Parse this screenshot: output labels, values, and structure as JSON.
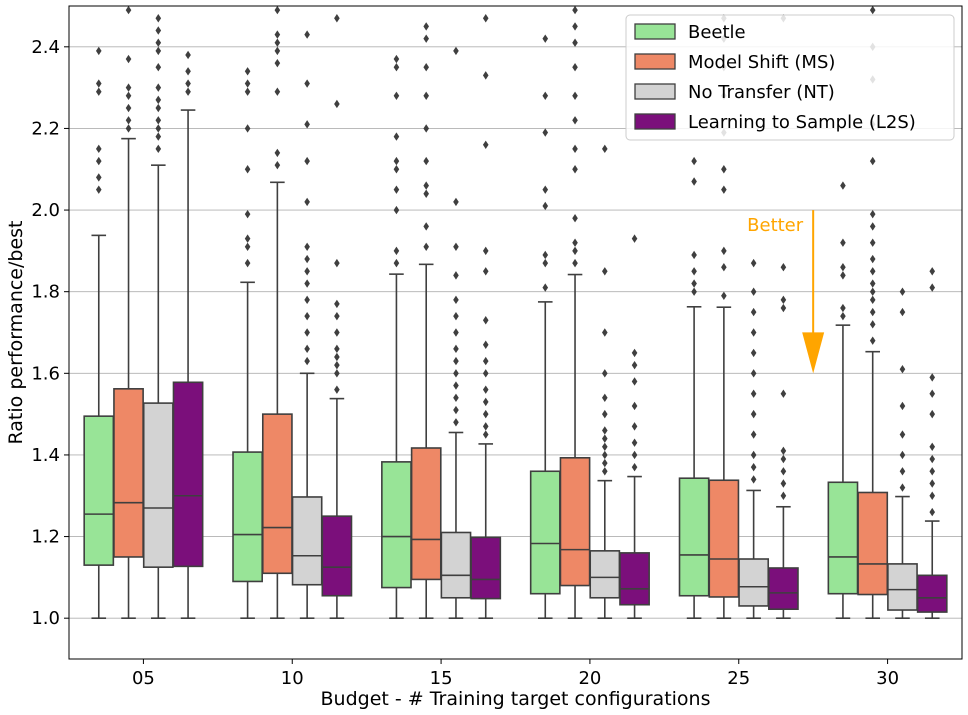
{
  "chart_data": {
    "type": "box",
    "xlabel": "Budget - # Training target configurations",
    "ylabel": "Ratio performance/best",
    "ylim": [
      0.9,
      2.5
    ],
    "yticks": [
      1.0,
      1.2,
      1.4,
      1.6,
      1.8,
      2.0,
      2.2,
      2.4
    ],
    "ytick_labels": [
      "1.0",
      "1.2",
      "1.4",
      "1.6",
      "1.8",
      "2.0",
      "2.2",
      "2.4"
    ],
    "categories": [
      "05",
      "10",
      "15",
      "20",
      "25",
      "30"
    ],
    "grid": "horizontal",
    "legend_position": "top-right",
    "annotation": {
      "text": "Better",
      "arrow_x": 27.5,
      "arrow_from_y": 2.0,
      "arrow_to_y": 1.6,
      "color": "#ffa500"
    },
    "series": [
      {
        "name": "Beetle",
        "color": "#98e497",
        "boxes": [
          {
            "whislo": 1.0,
            "q1": 1.13,
            "med": 1.255,
            "q3": 1.495,
            "whishi": 1.938,
            "fliers": [
              2.05,
              2.08,
              2.12,
              2.15,
              2.29,
              2.31,
              2.39
            ]
          },
          {
            "whislo": 1.0,
            "q1": 1.09,
            "med": 1.205,
            "q3": 1.407,
            "whishi": 1.823,
            "fliers": [
              1.87,
              1.91,
              1.93,
              1.99,
              2.1,
              2.2,
              2.29,
              2.31,
              2.34
            ]
          },
          {
            "whislo": 1.0,
            "q1": 1.075,
            "med": 1.2,
            "q3": 1.383,
            "whishi": 1.843,
            "fliers": [
              1.87,
              1.9,
              2.0,
              2.05,
              2.1,
              2.12,
              2.18,
              2.28,
              2.35,
              2.37
            ]
          },
          {
            "whislo": 1.0,
            "q1": 1.06,
            "med": 1.183,
            "q3": 1.36,
            "whishi": 1.775,
            "fliers": [
              1.81,
              1.87,
              1.89,
              2.01,
              2.05,
              2.19,
              2.28,
              2.42
            ]
          },
          {
            "whislo": 1.0,
            "q1": 1.055,
            "med": 1.155,
            "q3": 1.343,
            "whishi": 1.763,
            "fliers": [
              1.8,
              1.82,
              1.85,
              1.89,
              2.07,
              2.12
            ]
          },
          {
            "whislo": 1.0,
            "q1": 1.06,
            "med": 1.15,
            "q3": 1.333,
            "whishi": 1.718,
            "fliers": [
              1.74,
              1.76,
              1.84,
              1.86,
              1.92,
              2.06
            ]
          }
        ]
      },
      {
        "name": "Model Shift (MS)",
        "color": "#ee8866",
        "boxes": [
          {
            "whislo": 1.0,
            "q1": 1.15,
            "med": 1.283,
            "q3": 1.562,
            "whishi": 2.175,
            "fliers": [
              2.2,
              2.22,
              2.25,
              2.28,
              2.3,
              2.37,
              2.49
            ]
          },
          {
            "whislo": 1.0,
            "q1": 1.11,
            "med": 1.222,
            "q3": 1.5,
            "whishi": 2.068,
            "fliers": [
              2.11,
              2.14,
              2.29,
              2.36,
              2.39,
              2.41,
              2.43,
              2.49
            ]
          },
          {
            "whislo": 1.0,
            "q1": 1.095,
            "med": 1.193,
            "q3": 1.417,
            "whishi": 1.867,
            "fliers": [
              1.91,
              1.96,
              2.04,
              2.06,
              2.12,
              2.2,
              2.28,
              2.35,
              2.42,
              2.45
            ]
          },
          {
            "whislo": 1.0,
            "q1": 1.08,
            "med": 1.168,
            "q3": 1.393,
            "whishi": 1.842,
            "fliers": [
              1.87,
              1.9,
              1.92,
              1.98,
              2.1,
              2.15,
              2.22,
              2.28,
              2.35,
              2.41,
              2.45,
              2.49
            ]
          },
          {
            "whislo": 1.0,
            "q1": 1.052,
            "med": 1.145,
            "q3": 1.338,
            "whishi": 1.762,
            "fliers": [
              1.79,
              1.86,
              1.9,
              2.05,
              2.1,
              2.19,
              2.28,
              2.35,
              2.42,
              2.47
            ]
          },
          {
            "whislo": 1.0,
            "q1": 1.058,
            "med": 1.133,
            "q3": 1.308,
            "whishi": 1.653,
            "fliers": [
              1.68,
              1.72,
              1.75,
              1.78,
              1.8,
              1.82,
              1.85,
              1.88,
              1.92,
              1.96,
              1.99,
              2.12,
              2.21,
              2.32,
              2.4,
              2.49
            ]
          }
        ]
      },
      {
        "name": "No Transfer (NT)",
        "color": "#d3d3d3",
        "boxes": [
          {
            "whislo": 1.0,
            "q1": 1.125,
            "med": 1.27,
            "q3": 1.527,
            "whishi": 2.11,
            "fliers": [
              2.15,
              2.18,
              2.2,
              2.22,
              2.25,
              2.27,
              2.3,
              2.35,
              2.39,
              2.41,
              2.44,
              2.47
            ]
          },
          {
            "whislo": 1.0,
            "q1": 1.082,
            "med": 1.153,
            "q3": 1.297,
            "whishi": 1.6,
            "fliers": [
              1.63,
              1.66,
              1.7,
              1.74,
              1.78,
              1.82,
              1.85,
              1.88,
              1.91,
              2.02,
              2.12,
              2.21,
              2.31,
              2.43
            ]
          },
          {
            "whislo": 1.0,
            "q1": 1.05,
            "med": 1.105,
            "q3": 1.21,
            "whishi": 1.455,
            "fliers": [
              1.48,
              1.51,
              1.54,
              1.57,
              1.6,
              1.63,
              1.66,
              1.7,
              1.74,
              1.78,
              1.84,
              1.91,
              2.02,
              2.39
            ]
          },
          {
            "whislo": 1.0,
            "q1": 1.05,
            "med": 1.1,
            "q3": 1.165,
            "whishi": 1.337,
            "fliers": [
              1.36,
              1.38,
              1.4,
              1.42,
              1.44,
              1.46,
              1.5,
              1.54,
              1.6,
              1.7,
              1.85,
              2.15
            ]
          },
          {
            "whislo": 1.0,
            "q1": 1.03,
            "med": 1.077,
            "q3": 1.145,
            "whishi": 1.313,
            "fliers": [
              1.34,
              1.37,
              1.4,
              1.45,
              1.5,
              1.55,
              1.6,
              1.65,
              1.7,
              1.75,
              1.8,
              1.87
            ]
          },
          {
            "whislo": 1.0,
            "q1": 1.02,
            "med": 1.07,
            "q3": 1.133,
            "whishi": 1.298,
            "fliers": [
              1.32,
              1.36,
              1.4,
              1.45,
              1.52,
              1.61,
              1.75,
              1.8
            ]
          }
        ]
      },
      {
        "name": "Learning to Sample (L2S)",
        "color": "#7b0f7b",
        "boxes": [
          {
            "whislo": 1.0,
            "q1": 1.127,
            "med": 1.3,
            "q3": 1.578,
            "whishi": 2.245,
            "fliers": [
              2.29,
              2.31,
              2.34,
              2.38
            ]
          },
          {
            "whislo": 1.0,
            "q1": 1.055,
            "med": 1.125,
            "q3": 1.25,
            "whishi": 1.538,
            "fliers": [
              1.56,
              1.6,
              1.62,
              1.64,
              1.66,
              1.7,
              1.74,
              1.77,
              1.87,
              2.26,
              2.47
            ]
          },
          {
            "whislo": 1.0,
            "q1": 1.048,
            "med": 1.095,
            "q3": 1.198,
            "whishi": 1.427,
            "fliers": [
              1.45,
              1.47,
              1.5,
              1.53,
              1.56,
              1.6,
              1.63,
              1.67,
              1.73,
              1.85,
              1.9,
              2.16,
              2.33,
              2.47
            ]
          },
          {
            "whislo": 1.0,
            "q1": 1.033,
            "med": 1.072,
            "q3": 1.16,
            "whishi": 1.347,
            "fliers": [
              1.37,
              1.4,
              1.43,
              1.47,
              1.52,
              1.58,
              1.62,
              1.65,
              1.93
            ]
          },
          {
            "whislo": 1.0,
            "q1": 1.022,
            "med": 1.062,
            "q3": 1.123,
            "whishi": 1.273,
            "fliers": [
              1.3,
              1.33,
              1.36,
              1.39,
              1.41,
              1.55,
              1.76,
              1.78,
              1.86,
              2.47
            ]
          },
          {
            "whislo": 1.0,
            "q1": 1.015,
            "med": 1.05,
            "q3": 1.105,
            "whishi": 1.238,
            "fliers": [
              1.26,
              1.3,
              1.33,
              1.36,
              1.39,
              1.42,
              1.5,
              1.55,
              1.59,
              1.81,
              1.85
            ]
          }
        ]
      }
    ]
  }
}
